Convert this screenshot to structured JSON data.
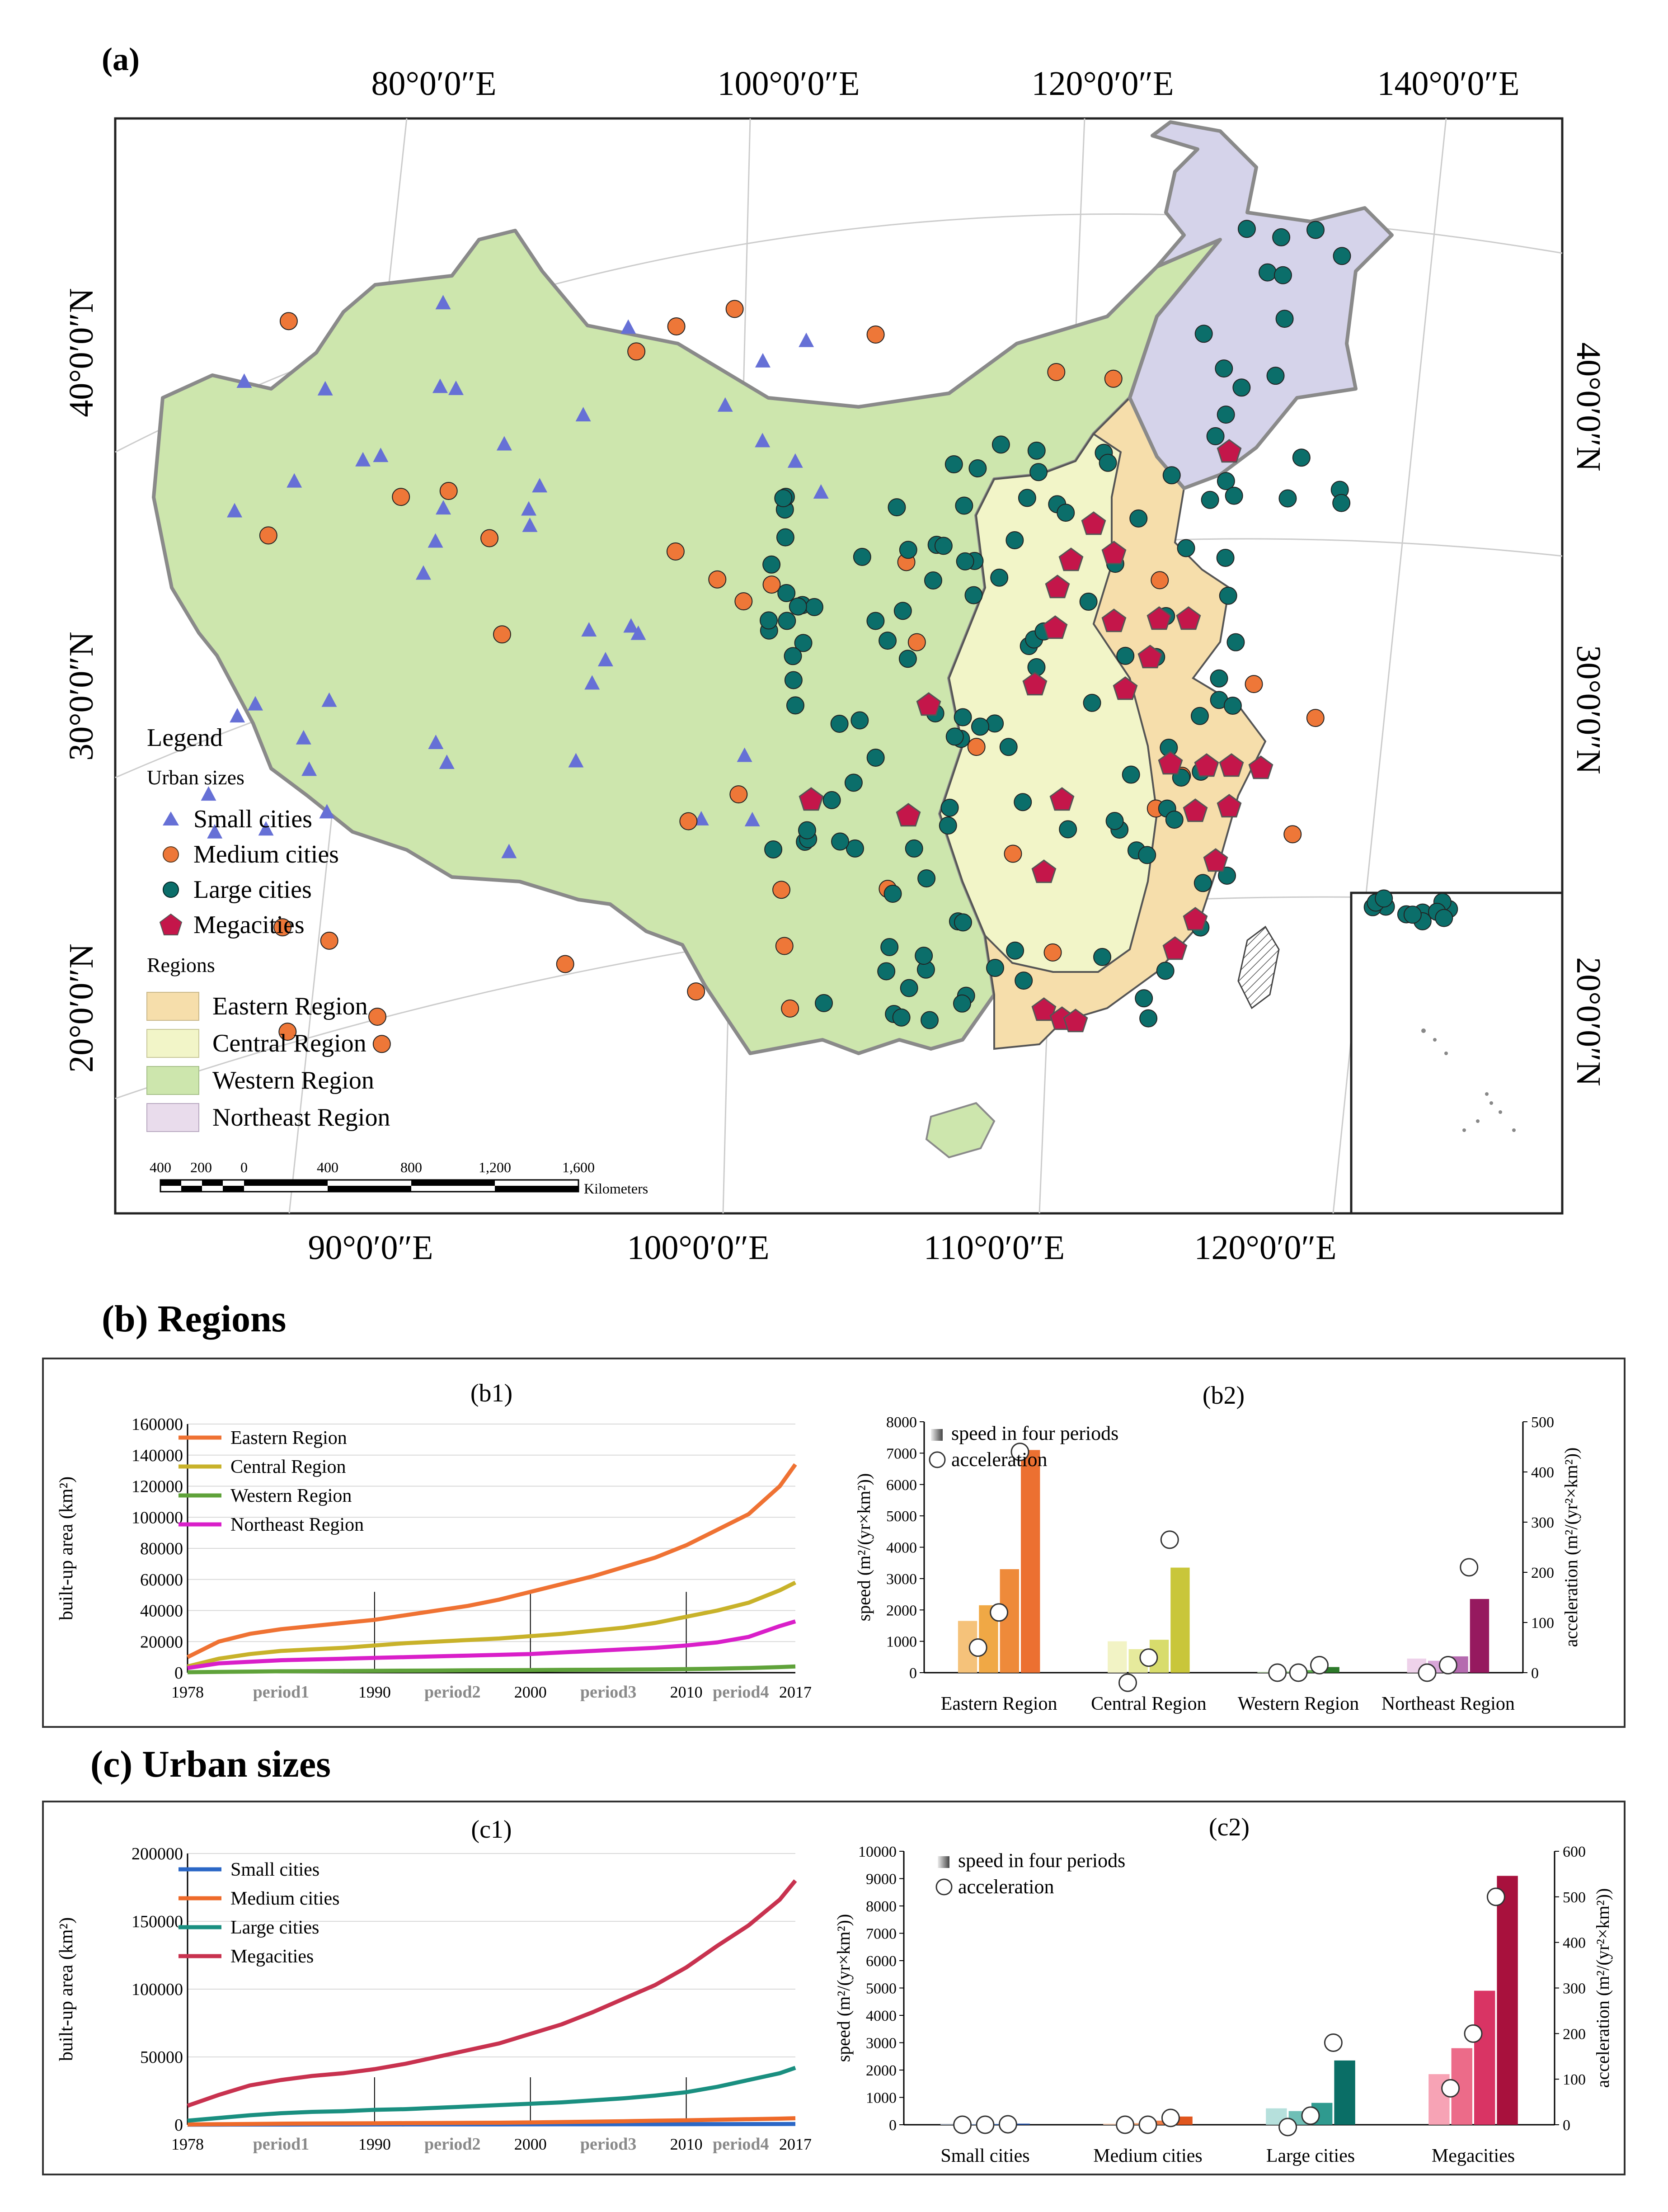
{
  "panel_a": {
    "label": "(a)",
    "top_lon": [
      "80°0′0″E",
      "100°0′0″E",
      "120°0′0″E",
      "140°0′0″E"
    ],
    "bottom_lon": [
      "90°0′0″E",
      "100°0′0″E",
      "110°0′0″E",
      "120°0′0″E"
    ],
    "left_lat": [
      "40°0′0″N",
      "30°0′0″N",
      "20°0′0″N"
    ],
    "right_lat": [
      "40°0′0″N",
      "30°0′0″N",
      "20°0′0″N"
    ],
    "legend": {
      "title": "Legend",
      "sizes_title": "Urban sizes",
      "sizes": [
        "Small cities",
        "Medium cities",
        "Large cities",
        "Megacities"
      ],
      "regions_title": "Regions",
      "regions": [
        "Eastern Region",
        "Central Region",
        "Western Region",
        "Northeast Region"
      ]
    },
    "scale": {
      "ticks": [
        "400",
        "200",
        "0",
        "400",
        "800",
        "1,200",
        "1,600"
      ],
      "unit": "Kilometers"
    }
  },
  "colors": {
    "eastern_fill": "#f6deab",
    "central_fill": "#f2f5c8",
    "western_fill": "#cde6ad",
    "northeast_fill": "#d5d3ea",
    "small": "#6670d6",
    "medium": "#ee7738",
    "large": "#0b6e6a",
    "mega": "#c4164a"
  },
  "section_b": {
    "label": "(b) Regions"
  },
  "section_c": {
    "label": "(c) Urban sizes"
  },
  "chart_data": [
    {
      "id": "b1",
      "type": "line",
      "title": "(b1)",
      "ylabel": "built-up area (km²)",
      "ylim": [
        0,
        160000
      ],
      "yticks": [
        "0",
        "20000",
        "40000",
        "60000",
        "80000",
        "100000",
        "120000",
        "140000",
        "160000"
      ],
      "xticks": [
        "1978",
        "1990",
        "2000",
        "2010",
        "2017"
      ],
      "periods": [
        "period1",
        "period2",
        "period3",
        "period4"
      ],
      "years": [
        1978,
        1980,
        1982,
        1984,
        1986,
        1988,
        1990,
        1992,
        1994,
        1996,
        1998,
        2000,
        2002,
        2004,
        2006,
        2008,
        2010,
        2012,
        2014,
        2016,
        2017
      ],
      "series": [
        {
          "name": "Eastern Region",
          "color": "#ef7233",
          "values": [
            10000,
            20000,
            25000,
            28000,
            30000,
            32000,
            34000,
            37000,
            40000,
            43000,
            47000,
            52000,
            57000,
            62000,
            68000,
            74000,
            82000,
            92000,
            102000,
            120000,
            134000
          ]
        },
        {
          "name": "Central Region",
          "color": "#c8b22a",
          "values": [
            4000,
            9000,
            12000,
            14000,
            15000,
            16000,
            17500,
            19000,
            20000,
            21000,
            22000,
            23500,
            25000,
            27000,
            29000,
            32000,
            36000,
            40000,
            45000,
            53000,
            58000
          ]
        },
        {
          "name": "Western Region",
          "color": "#5fa23a",
          "values": [
            300,
            500,
            700,
            900,
            1000,
            1100,
            1200,
            1300,
            1400,
            1500,
            1600,
            1700,
            1800,
            1900,
            2000,
            2100,
            2300,
            2600,
            3000,
            3600,
            4000
          ]
        },
        {
          "name": "Northeast Region",
          "color": "#d91fc9",
          "values": [
            3000,
            6000,
            7000,
            8000,
            8500,
            9000,
            9500,
            10000,
            10500,
            11000,
            11500,
            12000,
            13000,
            14000,
            15000,
            16000,
            17500,
            19500,
            23000,
            30000,
            33000
          ]
        }
      ]
    },
    {
      "id": "b2",
      "type": "bar",
      "title": "(b2)",
      "ylabel": "speed (m²/(yr×km²))",
      "ylim": [
        0,
        8000
      ],
      "yticks": [
        "0",
        "1000",
        "2000",
        "3000",
        "4000",
        "5000",
        "6000",
        "7000",
        "8000"
      ],
      "y2label": "acceleration (m²/(yr²×km²))",
      "y2lim": [
        0,
        500
      ],
      "y2ticks": [
        "0",
        "100",
        "200",
        "300",
        "400",
        "500"
      ],
      "legend": [
        "speed in four periods",
        "acceleration"
      ],
      "categories": [
        "Eastern Region",
        "Central Region",
        "Western Region",
        "Northeast Region"
      ],
      "speed": [
        [
          1650,
          2150,
          3300,
          7100
        ],
        [
          1000,
          750,
          1050,
          3350
        ],
        [
          30,
          40,
          80,
          180
        ],
        [
          450,
          380,
          520,
          2350
        ]
      ],
      "acceleration": [
        [
          50,
          120,
          440
        ],
        [
          -20,
          30,
          265
        ],
        [
          0,
          0,
          15
        ],
        [
          0,
          15,
          210
        ]
      ],
      "bar_colors": [
        [
          "#f5c27a",
          "#f0a845",
          "#ee8a3a",
          "#ec7031"
        ],
        [
          "#f2f3c5",
          "#e6ea9c",
          "#d8dc6c",
          "#c9c63a"
        ],
        [
          "#cde8c0",
          "#9bd18e",
          "#5aa84a",
          "#2d7a2a"
        ],
        [
          "#eed2ea",
          "#d8a6d8",
          "#b56aaf",
          "#96195f"
        ]
      ]
    },
    {
      "id": "c1",
      "type": "line",
      "title": "(c1)",
      "ylabel": "built-up area (km²)",
      "ylim": [
        0,
        200000
      ],
      "yticks": [
        "0",
        "50000",
        "100000",
        "150000",
        "200000"
      ],
      "xticks": [
        "1978",
        "1990",
        "2000",
        "2010",
        "2017"
      ],
      "periods": [
        "period1",
        "period2",
        "period3",
        "period4"
      ],
      "years": [
        1978,
        1980,
        1982,
        1984,
        1986,
        1988,
        1990,
        1992,
        1994,
        1996,
        1998,
        2000,
        2002,
        2004,
        2006,
        2008,
        2010,
        2012,
        2014,
        2016,
        2017
      ],
      "series": [
        {
          "name": "Small cities",
          "color": "#2b67c6",
          "values": [
            50,
            100,
            120,
            140,
            160,
            180,
            200,
            220,
            240,
            260,
            280,
            300,
            320,
            340,
            360,
            380,
            400,
            450,
            500,
            550,
            600
          ]
        },
        {
          "name": "Medium cities",
          "color": "#ee6a2a",
          "values": [
            200,
            400,
            600,
            800,
            900,
            1000,
            1100,
            1200,
            1300,
            1400,
            1500,
            1700,
            2000,
            2300,
            2600,
            3000,
            3300,
            3700,
            4100,
            4500,
            4800
          ]
        },
        {
          "name": "Large cities",
          "color": "#1a8f80",
          "values": [
            3000,
            5000,
            7000,
            8500,
            9500,
            10000,
            11000,
            11500,
            12500,
            13500,
            14500,
            15500,
            16500,
            18000,
            19500,
            21500,
            24000,
            28000,
            33000,
            38000,
            42000
          ]
        },
        {
          "name": "Megacities",
          "color": "#c8324f",
          "values": [
            14000,
            22000,
            29000,
            33000,
            36000,
            38000,
            41000,
            45000,
            50000,
            55000,
            60000,
            67000,
            74000,
            83000,
            93000,
            103000,
            116000,
            132000,
            147000,
            166000,
            180000
          ]
        }
      ]
    },
    {
      "id": "c2",
      "type": "bar",
      "title": "(c2)",
      "ylabel": "speed (m²/(yr×km²))",
      "ylim": [
        0,
        10000
      ],
      "yticks": [
        "0",
        "1000",
        "2000",
        "3000",
        "4000",
        "5000",
        "6000",
        "7000",
        "8000",
        "9000",
        "10000"
      ],
      "y2label": "acceleration (m²/(yr²×km²))",
      "y2lim": [
        0,
        600
      ],
      "y2ticks": [
        "0",
        "100",
        "200",
        "300",
        "400",
        "500",
        "600"
      ],
      "legend": [
        "speed in four periods",
        "acceleration"
      ],
      "categories": [
        "Small cities",
        "Medium cities",
        "Large cities",
        "Megacities"
      ],
      "speed": [
        [
          20,
          25,
          30,
          40
        ],
        [
          40,
          60,
          150,
          300
        ],
        [
          600,
          500,
          800,
          2350
        ],
        [
          1850,
          2800,
          4900,
          9100
        ]
      ],
      "acceleration": [
        [
          0,
          0,
          1
        ],
        [
          0,
          0,
          15
        ],
        [
          -5,
          20,
          180
        ],
        [
          80,
          200,
          500
        ]
      ],
      "bar_colors": [
        [
          "#c8d8f0",
          "#8fb2e6",
          "#4f82d0",
          "#1e4ea6"
        ],
        [
          "#fbd2b8",
          "#f6a878",
          "#ef7c45",
          "#e0561e"
        ],
        [
          "#b6e0dc",
          "#6fbfb6",
          "#2f9a8f",
          "#0a6e66"
        ],
        [
          "#f7a3b5",
          "#ec6b89",
          "#d93464",
          "#a8113d"
        ]
      ]
    }
  ]
}
